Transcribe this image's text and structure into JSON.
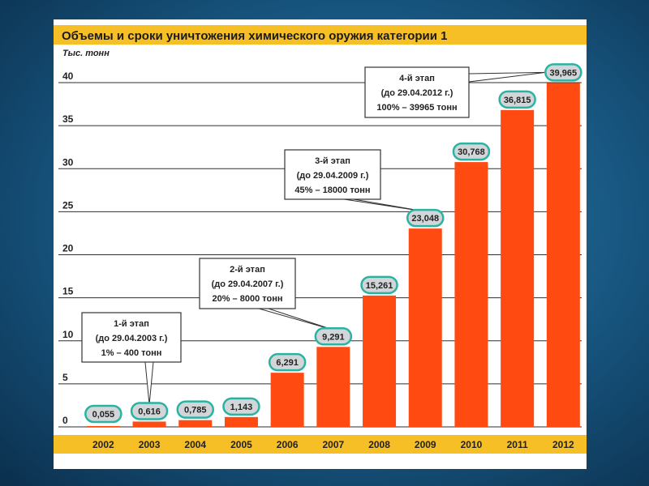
{
  "chart_data": {
    "type": "bar",
    "title": "Объемы и сроки уничтожения химического оружия категории 1",
    "ylabel": "Тыс. тонн",
    "xlabel": "",
    "ylim": [
      0,
      40
    ],
    "yticks": [
      0,
      5,
      10,
      15,
      20,
      25,
      30,
      35,
      40
    ],
    "categories": [
      "2002",
      "2003",
      "2004",
      "2005",
      "2006",
      "2007",
      "2008",
      "2009",
      "2010",
      "2011",
      "2012"
    ],
    "values": [
      0.055,
      0.616,
      0.785,
      1.143,
      6.291,
      9.291,
      15.261,
      23.048,
      30.768,
      36.815,
      39.965
    ],
    "value_labels": [
      "0,055",
      "0,616",
      "0,785",
      "1,143",
      "6,291",
      "9,291",
      "15,261",
      "23,048",
      "30,768",
      "36,815",
      "39,965"
    ],
    "grid": true,
    "annotations": [
      {
        "target": "2003",
        "lines": [
          "1-й этап",
          "(до 29.04.2003 г.)",
          "1% – 400 тонн"
        ]
      },
      {
        "target": "2007",
        "lines": [
          "2-й этап",
          "(до 29.04.2007 г.)",
          "20% – 8000 тонн"
        ]
      },
      {
        "target": "2009",
        "lines": [
          "3-й этап",
          "(до 29.04.2009 г.)",
          "45% – 18000 тонн"
        ]
      },
      {
        "target": "2012",
        "lines": [
          "4-й этап",
          "(до 29.04.2012 г.)",
          "100% – 39965 тонн"
        ]
      }
    ],
    "colors": {
      "bar": "#ff4a12",
      "title_band": "#f6bf26",
      "label_fill": "#d3d6d9",
      "label_ring": "#2bb3a1",
      "grid": "#2e2e2e",
      "text": "#222222"
    }
  }
}
